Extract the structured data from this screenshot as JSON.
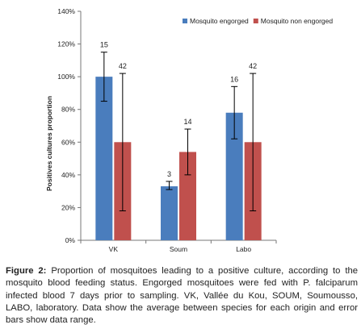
{
  "chart_data": {
    "type": "bar",
    "categories": [
      "VK",
      "Soum",
      "Labo"
    ],
    "ylabel": "Positives cultures proportion",
    "xlabel": "",
    "ylim": [
      0,
      140
    ],
    "yticks": [
      0,
      20,
      40,
      60,
      80,
      100,
      120,
      140
    ],
    "y_unit": "%",
    "grid": false,
    "legend_position": "top-right",
    "series": [
      {
        "name": "Mosquito engorged",
        "color": "#4a7dbd",
        "values": [
          100,
          33,
          78
        ],
        "error_low": [
          85,
          31,
          62
        ],
        "error_high": [
          115,
          36,
          94
        ],
        "labels": [
          "15",
          "3",
          "16"
        ]
      },
      {
        "name": "Mosquito non engorged",
        "color": "#c0504d",
        "values": [
          60,
          54,
          60
        ],
        "error_low": [
          18,
          40,
          18
        ],
        "error_high": [
          102,
          68,
          102
        ],
        "labels": [
          "42",
          "14",
          "42"
        ]
      }
    ]
  },
  "caption": {
    "label": "Figure 2:",
    "text": "Proportion of mosquitoes leading to a positive culture, according to the mosquito blood feeding status. Engorged mosquitoes were fed with P. falciparum infected blood 7 days prior to sampling. VK, Vallée du Kou, SOUM, Soumousso, LABO, laboratory. Data show the average between species for each origin and error bars show data range."
  }
}
